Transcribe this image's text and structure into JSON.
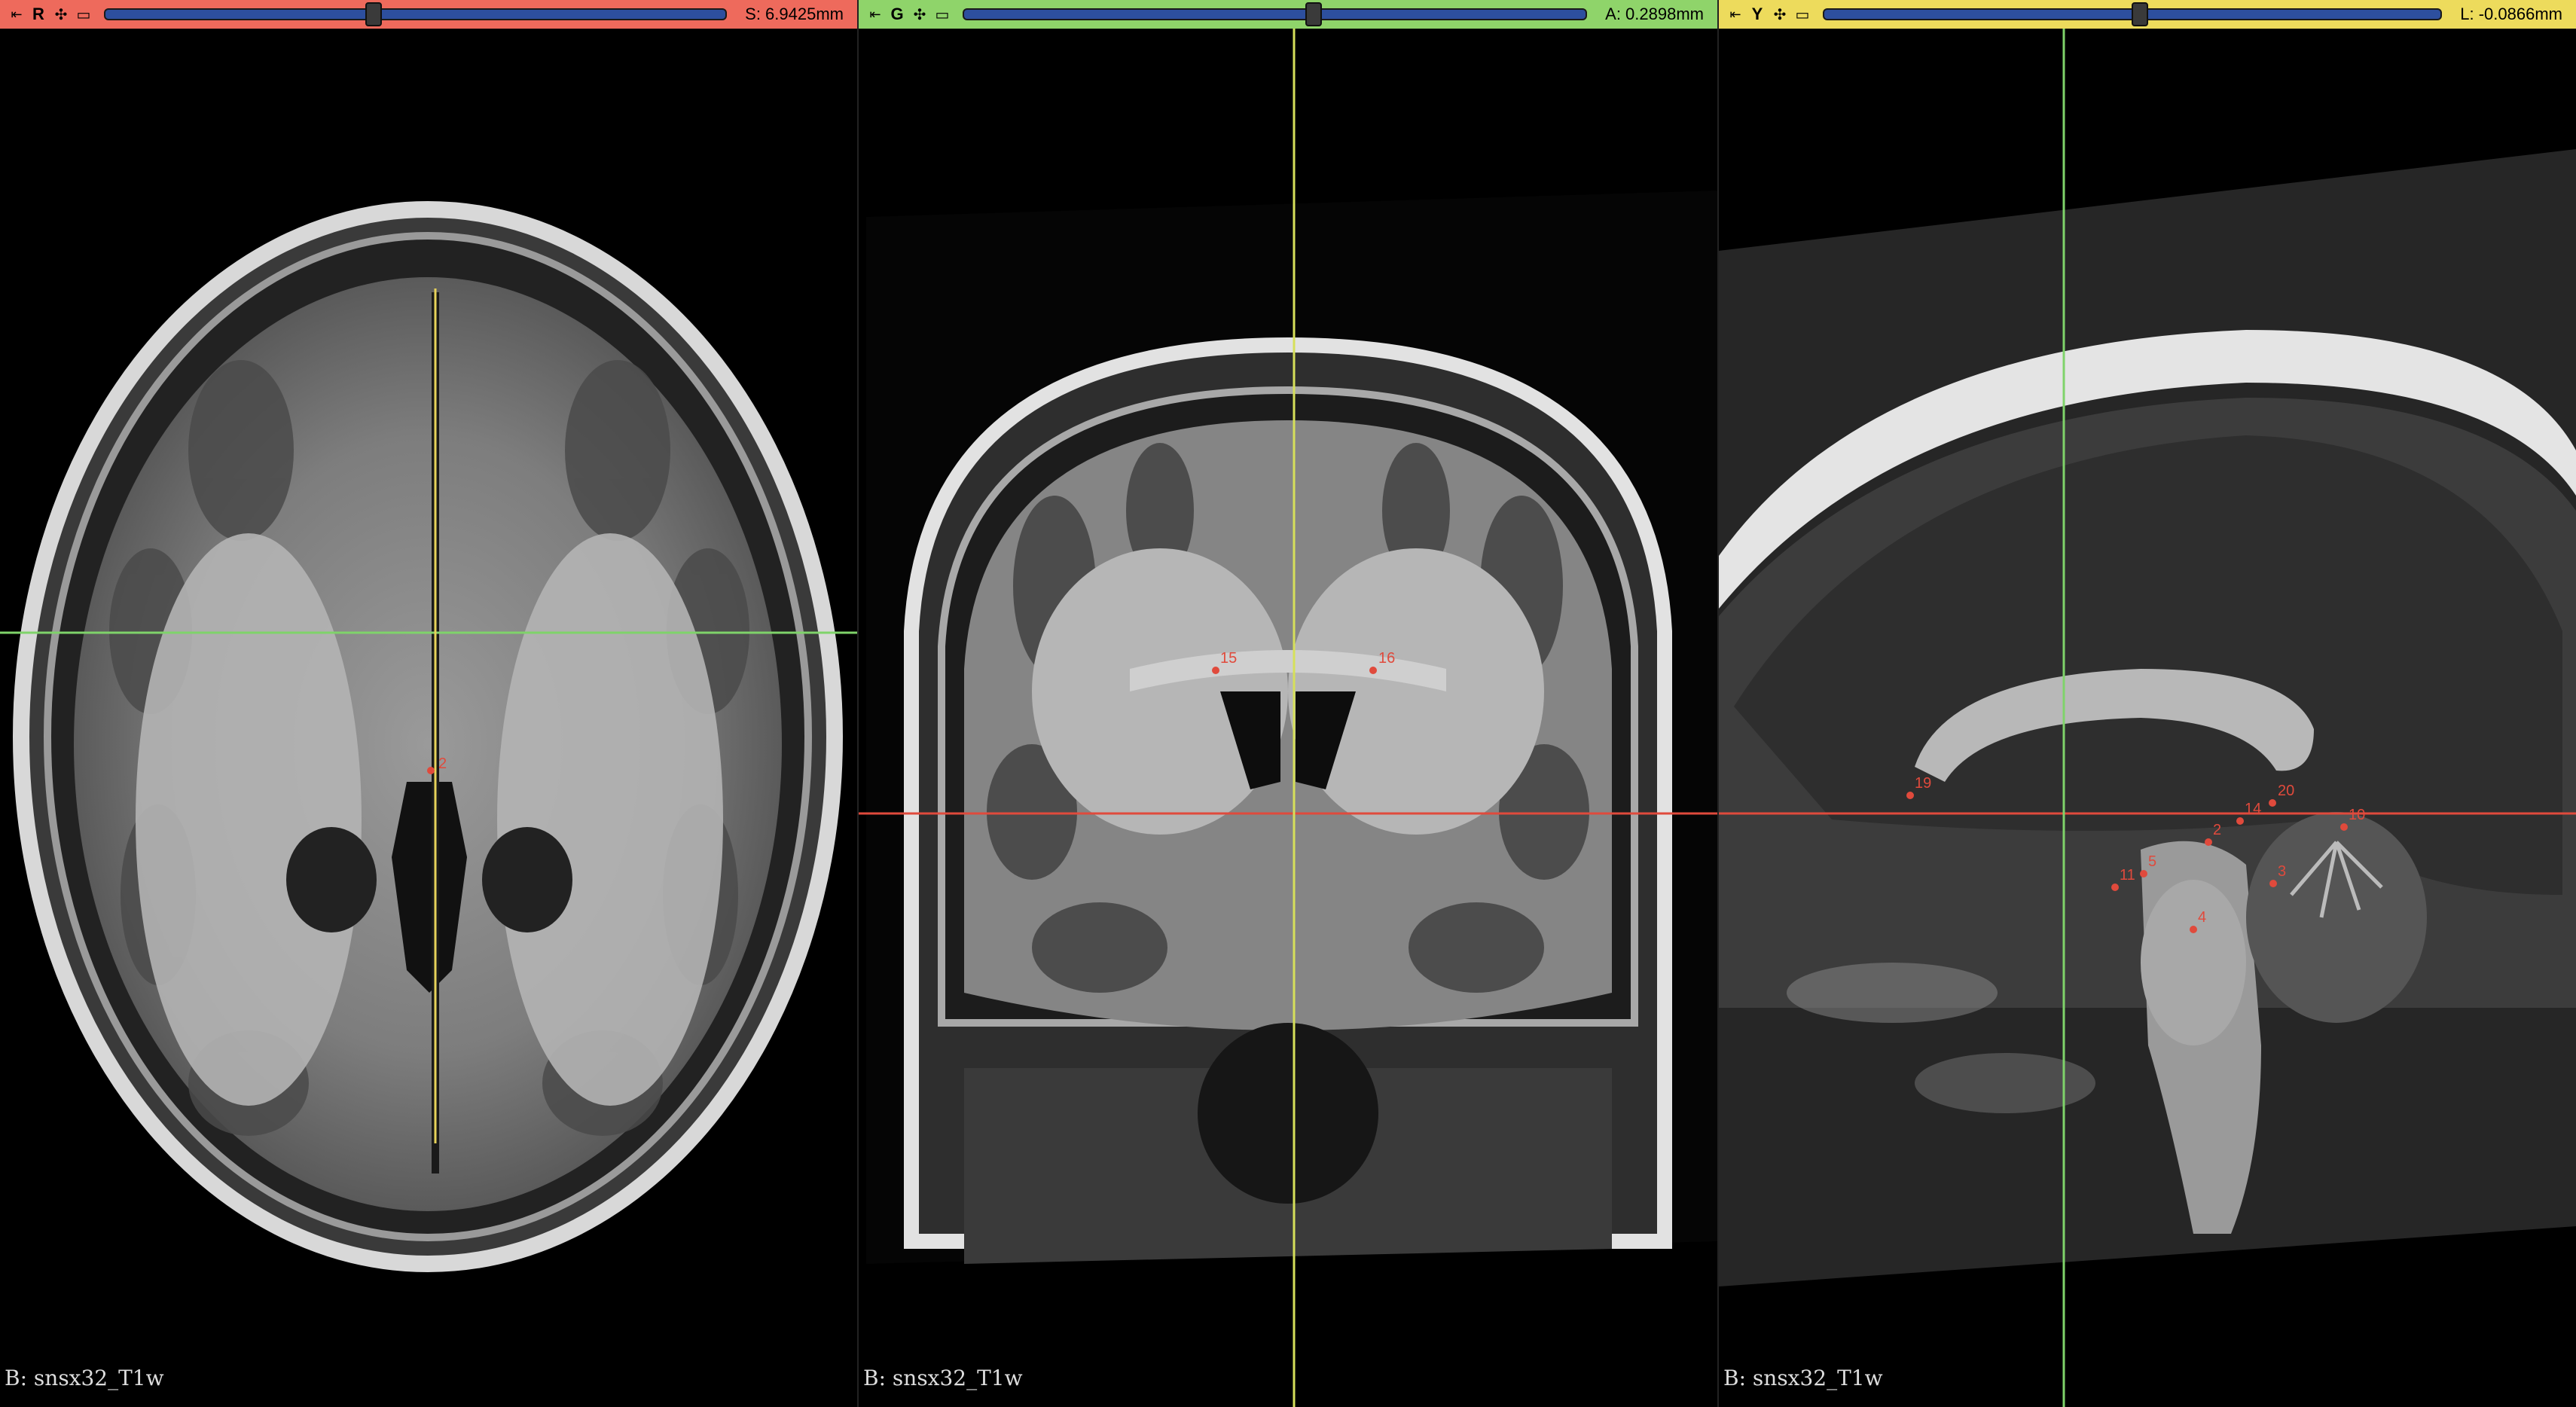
{
  "views": [
    {
      "id": "red",
      "letter": "R",
      "offset_label": "S: 6.9425mm",
      "slider_fraction": 0.43,
      "bg_label": "B: snsx32_T1w",
      "color": "#ee6a5c",
      "fiducials": [
        "2"
      ]
    },
    {
      "id": "green",
      "letter": "G",
      "offset_label": "A: 0.2898mm",
      "slider_fraction": 0.56,
      "bg_label": "B: snsx32_T1w",
      "color": "#8fd46a",
      "fiducials": [
        "15",
        "16"
      ]
    },
    {
      "id": "yellow",
      "letter": "Y",
      "offset_label": "L: -0.0866mm",
      "slider_fraction": 0.51,
      "bg_label": "B: snsx32_T1w",
      "color": "#eddb5c",
      "fiducials": [
        "19",
        "20",
        "14",
        "2",
        "10",
        "5",
        "11",
        "3",
        "4"
      ]
    }
  ],
  "icons": {
    "pin": "pin-icon",
    "link": "link-icon",
    "view_options": "view-options-icon"
  },
  "crosshair_colors": {
    "horizontal_axial": "#7fd36a",
    "vertical_axial": "#e6d25a",
    "horizontal_other": "#e04a3c",
    "vertical_other": "#d6e05a"
  }
}
